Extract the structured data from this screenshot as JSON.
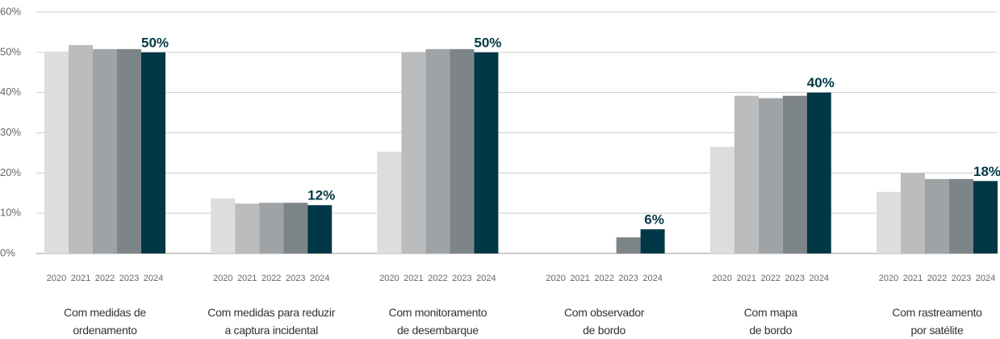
{
  "chart_data": {
    "type": "bar",
    "categories": [
      "Com medidas de\nordenamento",
      "Com medidas para reduzir\na captura incidental",
      "Com monitoramento\nde desembarque",
      "Com observador\nde bordo",
      "Com mapa\nde bordo",
      "Com rastreamento\npor satélite"
    ],
    "series": [
      {
        "name": "2020",
        "color": "#dcdddf",
        "values": [
          50.2,
          13.7,
          25.3,
          0,
          26.5,
          15.3
        ]
      },
      {
        "name": "2021",
        "color": "#bbbcbe",
        "values": [
          51.8,
          12.4,
          50,
          0,
          39.2,
          20
        ]
      },
      {
        "name": "2022",
        "color": "#a0a3a6",
        "values": [
          50.8,
          12.6,
          50.8,
          0,
          38.6,
          18.5
        ]
      },
      {
        "name": "2023",
        "color": "#7e8589",
        "values": [
          50.8,
          12.6,
          50.8,
          4,
          39.2,
          18.5
        ]
      },
      {
        "name": "2024",
        "color": "#003845",
        "values": [
          50,
          12,
          50,
          6,
          40,
          18
        ],
        "value_labels": [
          "50%",
          "12%",
          "50%",
          "6%",
          "40%",
          "18%"
        ]
      }
    ],
    "ylim": [
      0,
      60
    ],
    "yticks": [
      {
        "value": 0,
        "label": "0%"
      },
      {
        "value": 10,
        "label": "10%"
      },
      {
        "value": 20,
        "label": "20%"
      },
      {
        "value": 30,
        "label": "30%"
      },
      {
        "value": 40,
        "label": "40%"
      },
      {
        "value": 50,
        "label": "50%"
      },
      {
        "value": 60,
        "label": "60%"
      }
    ],
    "grid": true
  }
}
